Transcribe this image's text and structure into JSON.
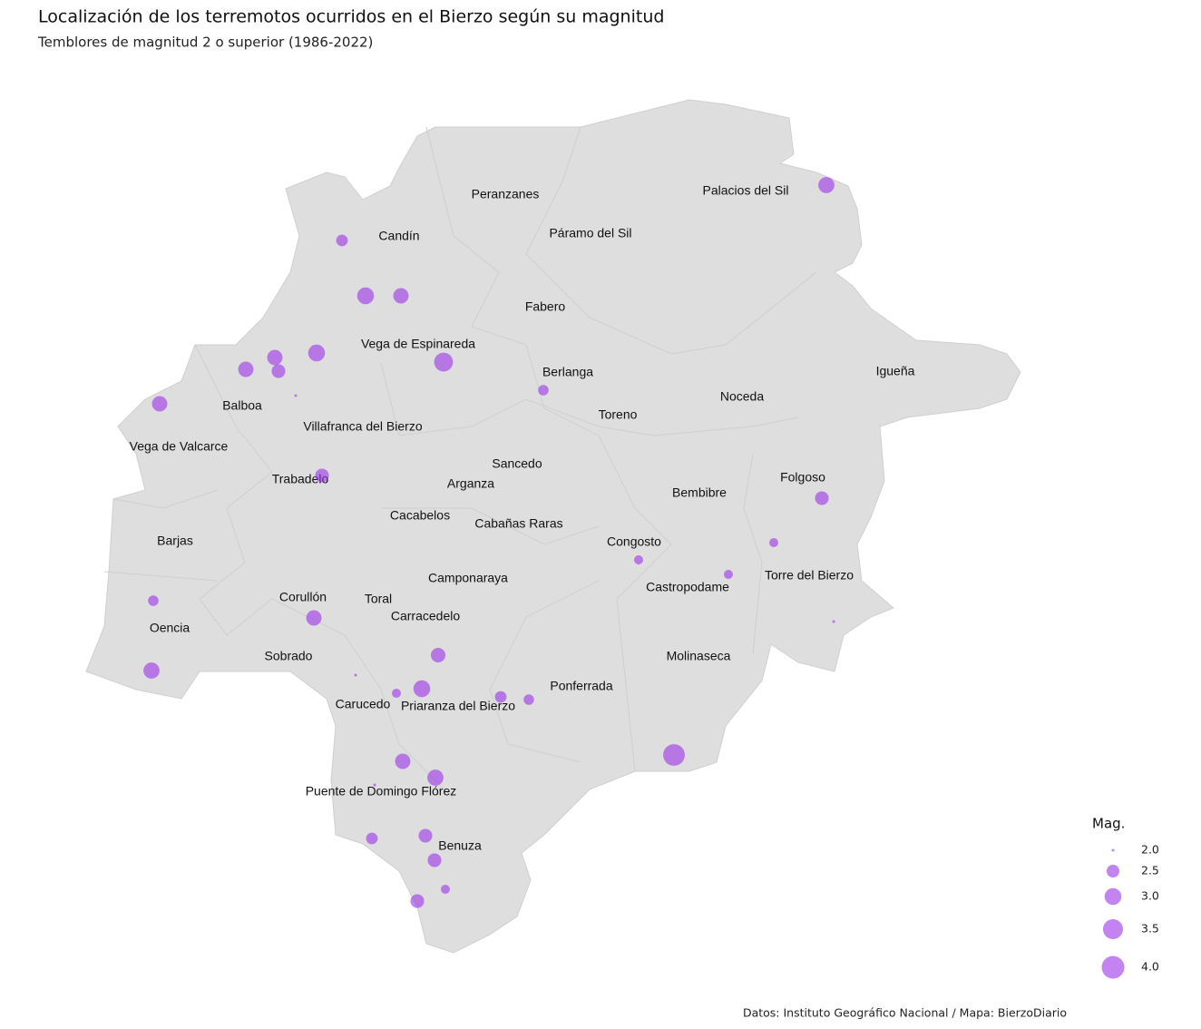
{
  "header": {
    "title": "Localización de los terremotos ocurridos en el Bierzo según su magnitud",
    "subtitle": "Temblores de magnitud 2 o superior (1986-2022)"
  },
  "map": {
    "municipalities": [
      "Peranzanes",
      "Palacios del Sil",
      "Candín",
      "Páramo del Sil",
      "Fabero",
      "Vega de Espinareda",
      "Berlanga",
      "Igueña",
      "Noceda",
      "Balboa",
      "Toreno",
      "Villafranca del Bierzo",
      "Vega de Valcarce",
      "Sancedo",
      "Trabadelo",
      "Arganza",
      "Folgoso",
      "Bembibre",
      "Cacabelos",
      "Cabañas Raras",
      "Barjas",
      "Congosto",
      "Camponaraya",
      "Torre del Bierzo",
      "Castropodame",
      "Corullón",
      "Toral",
      "Carracedelo",
      "Oencia",
      "Sobrado",
      "Molinaseca",
      "Ponferrada",
      "Carucedo",
      "Priaranza del Bierzo",
      "Puente de Domingo Flórez",
      "Benuza"
    ],
    "earthquakes": {
      "magnitude": [
        2.9,
        2.4,
        3.0,
        2.8,
        3.0,
        2.8,
        2.8,
        2.6,
        3.3,
        2.8,
        2.0,
        2.3,
        2.6,
        2.6,
        2.2,
        2.2,
        2.2,
        2.3,
        2.8,
        2.0,
        2.9,
        2.7,
        2.0,
        2.2,
        3.0,
        2.4,
        2.3,
        3.8,
        2.8,
        2.9,
        2.0,
        2.4,
        2.6,
        2.6,
        2.2,
        2.6
      ],
      "color": "#9b30e8"
    },
    "legend": {
      "title": "Mag.",
      "sizes": [
        {
          "value": 2.0,
          "label": "2.0"
        },
        {
          "value": 2.5,
          "label": "2.5"
        },
        {
          "value": 3.0,
          "label": "3.0"
        },
        {
          "value": 3.5,
          "label": "3.5"
        },
        {
          "value": 4.0,
          "label": "4.0"
        }
      ]
    }
  },
  "footer": {
    "source": "Datos: Instituto Geográfico Nacional / Mapa: BierzoDiario"
  }
}
